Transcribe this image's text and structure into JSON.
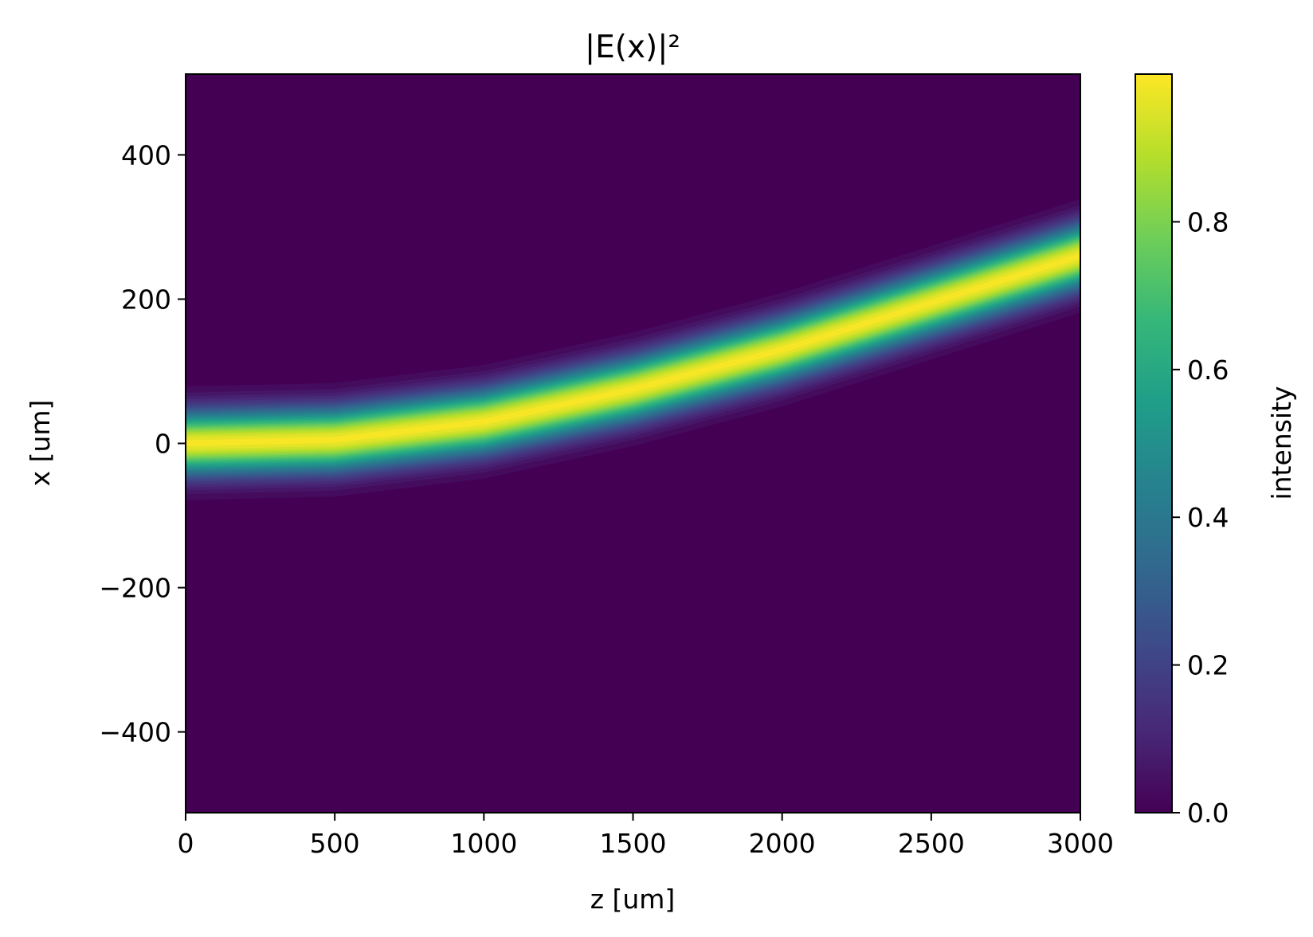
{
  "chart_data": {
    "type": "heatmap",
    "title": "|E(x)|²",
    "xlabel": "z [um]",
    "ylabel": "x [um]",
    "xlim": [
      0,
      3000
    ],
    "ylim": [
      -512,
      512
    ],
    "xticks": [
      0,
      500,
      1000,
      1500,
      2000,
      2500,
      3000
    ],
    "xtick_labels": [
      "0",
      "500",
      "1000",
      "1500",
      "2000",
      "2500",
      "3000"
    ],
    "yticks": [
      -400,
      -200,
      0,
      200,
      400
    ],
    "ytick_labels": [
      "−400",
      "−200",
      "0",
      "200",
      "400"
    ],
    "beam_center": {
      "z": [
        0,
        500,
        1000,
        1500,
        2000,
        2500,
        3000
      ],
      "x": [
        0,
        5,
        30,
        75,
        130,
        195,
        260
      ]
    },
    "beam_width_1e": 42,
    "colorbar": {
      "label": "intensity",
      "range": [
        0,
        1
      ],
      "ticks": [
        0.0,
        0.2,
        0.4,
        0.6,
        0.8
      ],
      "tick_labels": [
        "0.0",
        "0.2",
        "0.4",
        "0.6",
        "0.8"
      ],
      "colormap": [
        "#440154",
        "#482878",
        "#3e4989",
        "#31688e",
        "#26828e",
        "#1f9e89",
        "#35b779",
        "#6ece58",
        "#b5de2b",
        "#fde725"
      ]
    }
  }
}
